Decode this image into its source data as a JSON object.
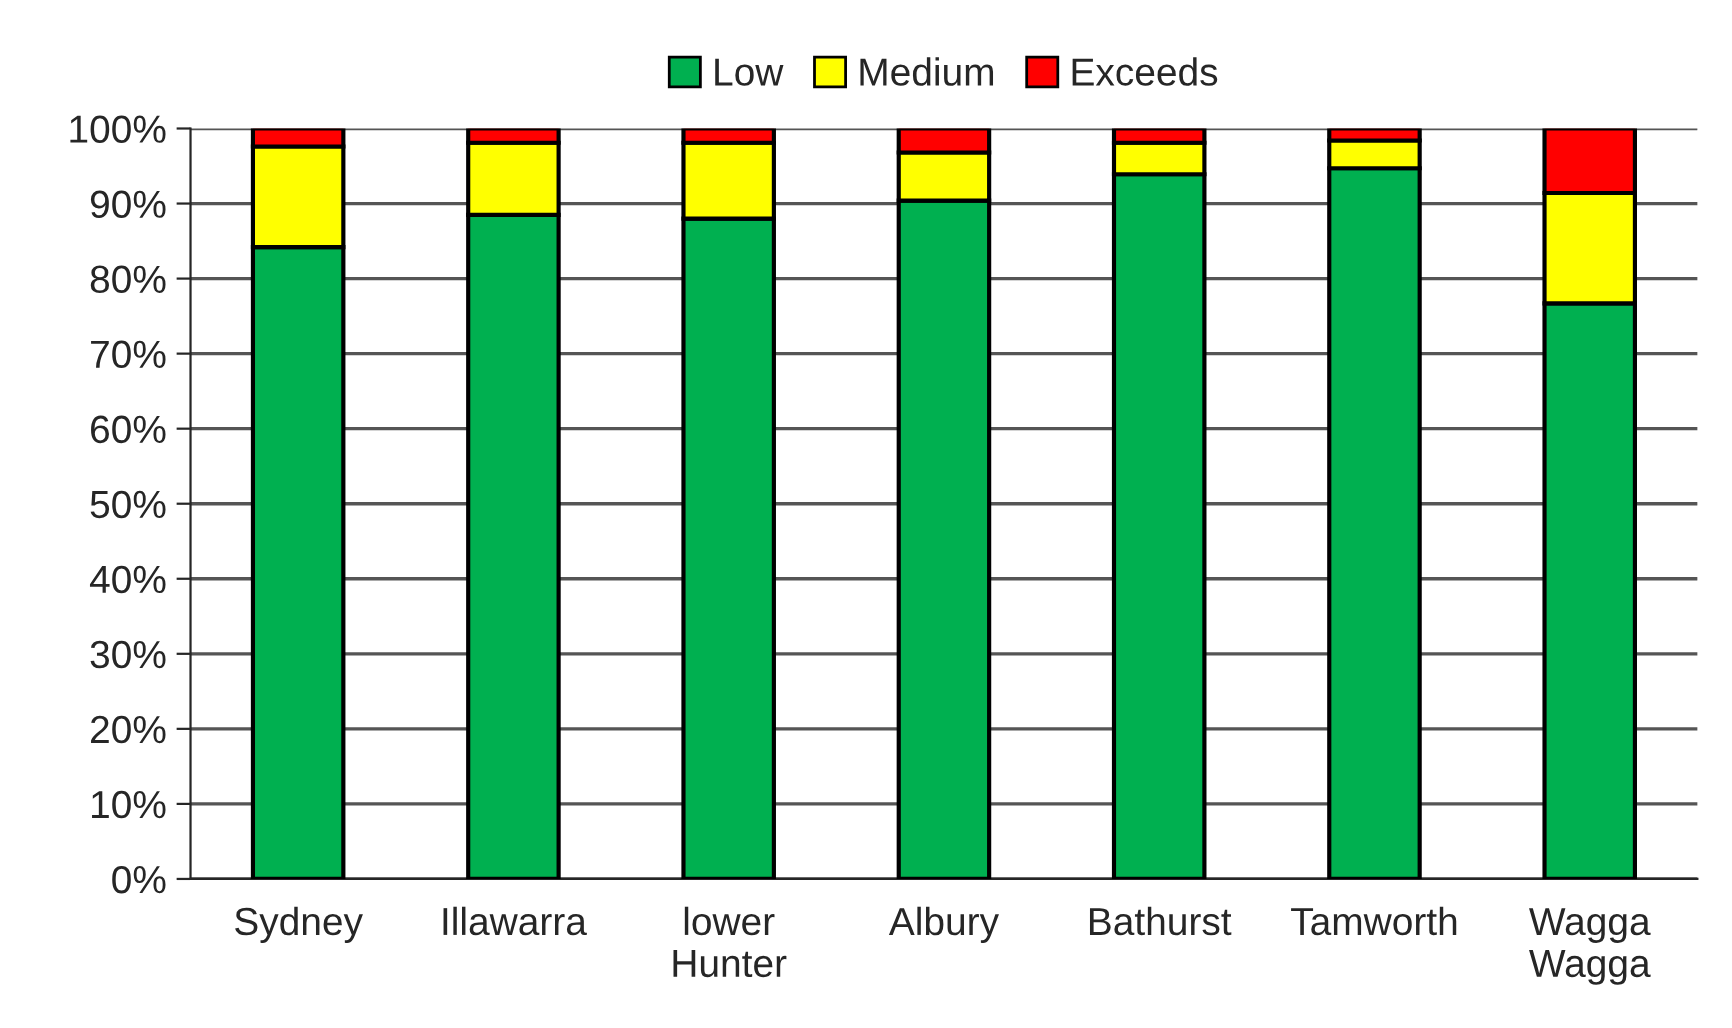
{
  "chart_data": {
    "type": "bar",
    "stacked": true,
    "categories": [
      "Sydney",
      "Illawarra",
      "lower\nHunter",
      "Albury",
      "Bathurst",
      "Tamworth",
      "Wagga\nWagga"
    ],
    "series": [
      {
        "name": "Low",
        "color": "#00b050",
        "values": [
          84.2,
          88.5,
          88.0,
          90.4,
          93.9,
          94.7,
          76.7
        ]
      },
      {
        "name": "Medium",
        "color": "#ffff00",
        "values": [
          13.4,
          9.6,
          10.1,
          6.4,
          4.2,
          3.7,
          14.7
        ]
      },
      {
        "name": "Exceeds",
        "color": "#ff0000",
        "values": [
          2.4,
          1.9,
          1.9,
          3.2,
          1.9,
          1.6,
          8.6
        ]
      }
    ],
    "ylim": [
      0,
      100
    ],
    "yticks": [
      {
        "value": 0,
        "label": "0%"
      },
      {
        "value": 10,
        "label": "10%"
      },
      {
        "value": 20,
        "label": "20%"
      },
      {
        "value": 30,
        "label": "30%"
      },
      {
        "value": 40,
        "label": "40%"
      },
      {
        "value": 50,
        "label": "50%"
      },
      {
        "value": 60,
        "label": "60%"
      },
      {
        "value": 70,
        "label": "70%"
      },
      {
        "value": 80,
        "label": "80%"
      },
      {
        "value": 90,
        "label": "90%"
      },
      {
        "value": 100,
        "label": "100%"
      }
    ],
    "grid": "y",
    "legend": "top"
  }
}
